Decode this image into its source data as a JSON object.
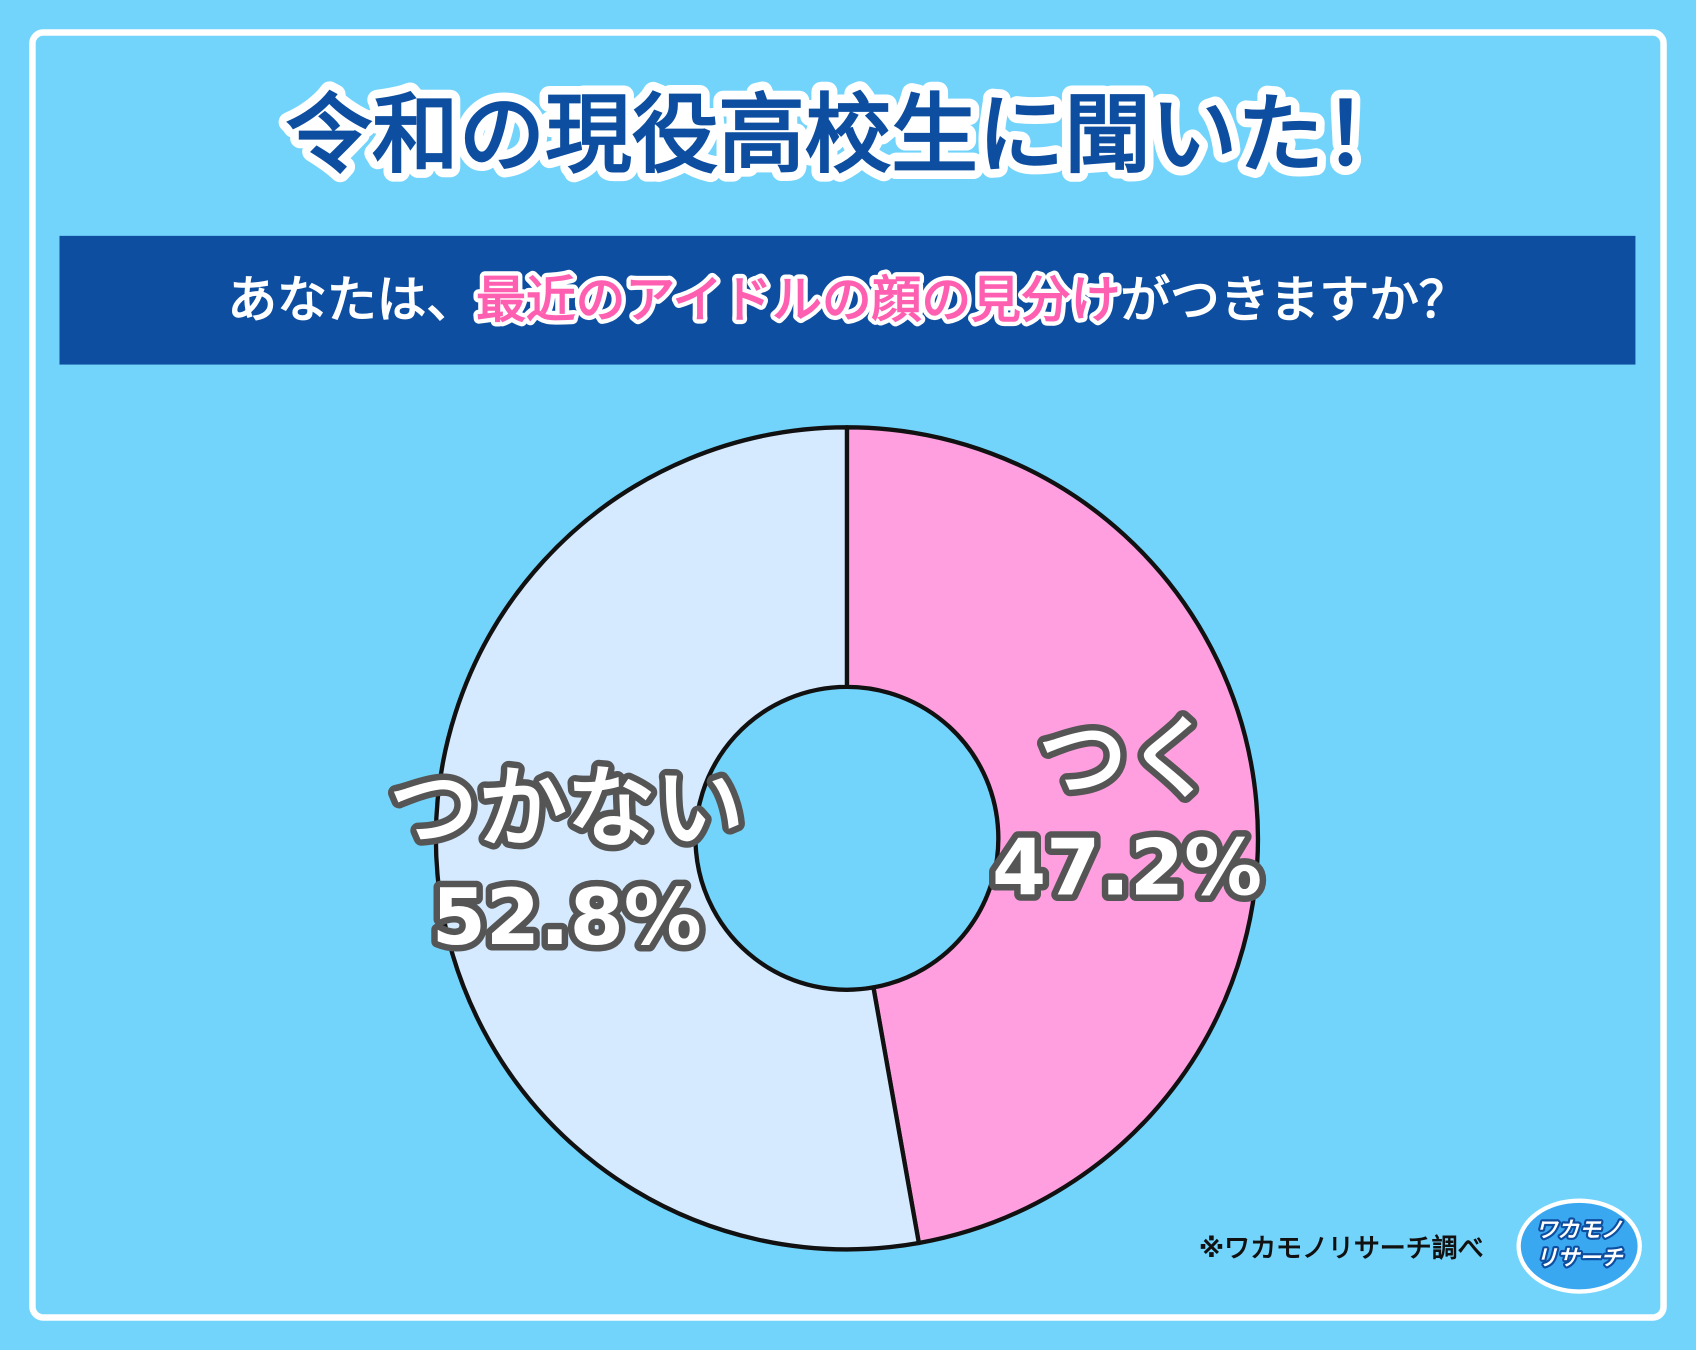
{
  "chart_data": {
    "type": "donut",
    "title": "令和の現役高校生に聞いた！",
    "subtitle": [
      "あなたは、",
      "最近のアイドルの顔の見分け",
      "がつきますか？"
    ],
    "categories": [
      "つく",
      "つかない"
    ],
    "values": [
      47.2,
      52.8
    ],
    "value_labels": [
      "47.2%",
      "52.8%"
    ],
    "colors": [
      "#ff9fdf",
      "#d5eaff"
    ],
    "source": "※ワカモノリサーチ調べ",
    "logo": [
      "ワカモノ",
      "リサーチ"
    ]
  }
}
